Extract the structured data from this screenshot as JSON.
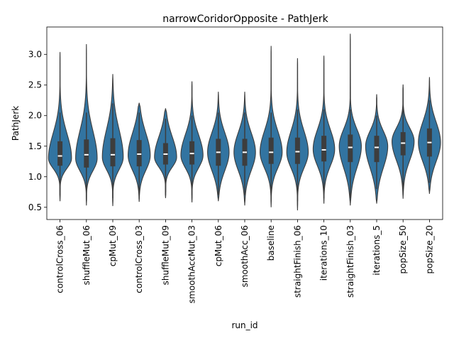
{
  "chart_data": {
    "type": "violin",
    "title": "narrowCoridorOpposite - PathJerk",
    "xlabel": "run_id",
    "ylabel": "PathJerk",
    "ylim": [
      0.3,
      3.45
    ],
    "yticks": [
      0.5,
      1.0,
      1.5,
      2.0,
      2.5,
      3.0
    ],
    "ytick_labels": [
      "0.5",
      "1.0",
      "1.5",
      "2.0",
      "2.5",
      "3.0"
    ],
    "grid": false,
    "legend": "none",
    "colors": {
      "violin": "#3274a1",
      "edge": "#3d3d3d",
      "box": "#3d3d3d",
      "median": "#ffffff"
    },
    "categories": [
      "controlCross_06",
      "shuffleMut_06",
      "cpMut_09",
      "controlCross_03",
      "shuffleMut_09",
      "smoothAccMut_03",
      "cpMut_06",
      "smoothAcc_06",
      "baseline",
      "straightFinish_06",
      "iterations_10",
      "straightFinish_03",
      "iterations_5",
      "popSize_50",
      "popSize_20"
    ],
    "stats": [
      {
        "min": 0.6,
        "q1": 1.18,
        "median": 1.34,
        "q3": 1.58,
        "max": 3.04,
        "whisker_lo": 0.7,
        "whisker_hi": 2.05,
        "mode": 1.3,
        "width": 0.75
      },
      {
        "min": 0.53,
        "q1": 1.15,
        "median": 1.36,
        "q3": 1.61,
        "max": 3.17,
        "whisker_lo": 0.6,
        "whisker_hi": 2.05,
        "mode": 1.3,
        "width": 0.7
      },
      {
        "min": 0.52,
        "q1": 1.17,
        "median": 1.36,
        "q3": 1.63,
        "max": 2.68,
        "whisker_lo": 0.65,
        "whisker_hi": 2.2,
        "mode": 1.32,
        "width": 0.68
      },
      {
        "min": 0.59,
        "q1": 1.17,
        "median": 1.37,
        "q3": 1.6,
        "max": 2.21,
        "whisker_lo": 0.7,
        "whisker_hi": 2.05,
        "mode": 1.35,
        "width": 0.72
      },
      {
        "min": 0.65,
        "q1": 1.2,
        "median": 1.37,
        "q3": 1.55,
        "max": 2.12,
        "whisker_lo": 0.75,
        "whisker_hi": 1.95,
        "mode": 1.32,
        "width": 0.72
      },
      {
        "min": 0.58,
        "q1": 1.2,
        "median": 1.38,
        "q3": 1.58,
        "max": 2.56,
        "whisker_lo": 0.7,
        "whisker_hi": 2.0,
        "mode": 1.35,
        "width": 0.72
      },
      {
        "min": 0.6,
        "q1": 1.18,
        "median": 1.4,
        "q3": 1.62,
        "max": 2.39,
        "whisker_lo": 0.7,
        "whisker_hi": 2.05,
        "mode": 1.4,
        "width": 0.7
      },
      {
        "min": 0.53,
        "q1": 1.18,
        "median": 1.4,
        "q3": 1.62,
        "max": 2.39,
        "whisker_lo": 0.7,
        "whisker_hi": 2.05,
        "mode": 1.4,
        "width": 0.7
      },
      {
        "min": 0.5,
        "q1": 1.21,
        "median": 1.4,
        "q3": 1.64,
        "max": 3.14,
        "whisker_lo": 0.7,
        "whisker_hi": 2.05,
        "mode": 1.4,
        "width": 0.72
      },
      {
        "min": 0.45,
        "q1": 1.21,
        "median": 1.41,
        "q3": 1.64,
        "max": 2.94,
        "whisker_lo": 0.6,
        "whisker_hi": 2.1,
        "mode": 1.4,
        "width": 0.7
      },
      {
        "min": 0.56,
        "q1": 1.25,
        "median": 1.44,
        "q3": 1.67,
        "max": 2.98,
        "whisker_lo": 0.65,
        "whisker_hi": 2.1,
        "mode": 1.45,
        "width": 0.7
      },
      {
        "min": 0.53,
        "q1": 1.24,
        "median": 1.48,
        "q3": 1.69,
        "max": 3.34,
        "whisker_lo": 0.65,
        "whisker_hi": 2.1,
        "mode": 1.5,
        "width": 0.72
      },
      {
        "min": 0.56,
        "q1": 1.24,
        "median": 1.48,
        "q3": 1.67,
        "max": 2.35,
        "whisker_lo": 0.8,
        "whisker_hi": 2.0,
        "mode": 1.5,
        "width": 0.72
      },
      {
        "min": 0.64,
        "q1": 1.35,
        "median": 1.55,
        "q3": 1.73,
        "max": 2.51,
        "whisker_lo": 0.8,
        "whisker_hi": 2.15,
        "mode": 1.58,
        "width": 0.72
      },
      {
        "min": 0.72,
        "q1": 1.33,
        "median": 1.56,
        "q3": 1.79,
        "max": 2.63,
        "whisker_lo": 0.9,
        "whisker_hi": 2.25,
        "mode": 1.56,
        "width": 0.72
      }
    ]
  }
}
